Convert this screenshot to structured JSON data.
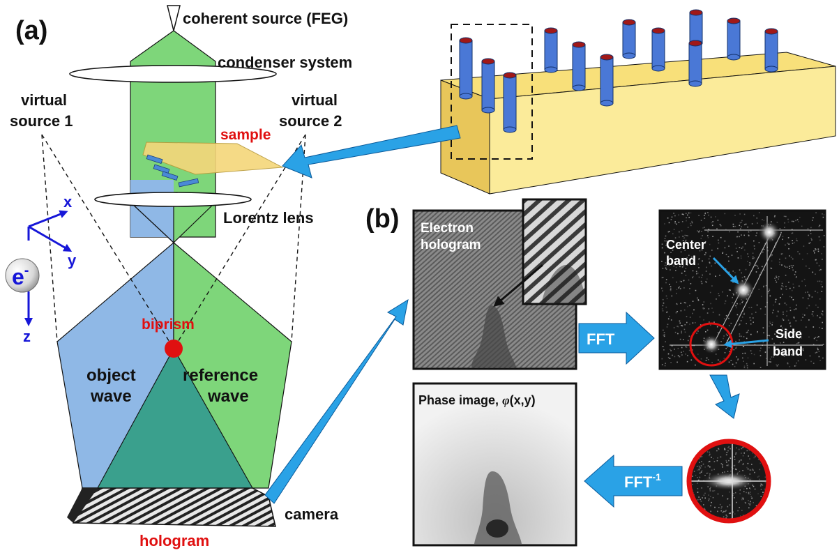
{
  "panel_a": {
    "label": "(a)",
    "source_label": "coherent source (FEG)",
    "condenser_label": "condenser system",
    "virtual_source_1": [
      "virtual",
      "source 1"
    ],
    "virtual_source_2": [
      "virtual",
      "source 2"
    ],
    "sample_label": "sample",
    "lorentz_label": "Lorentz lens",
    "biprism_label": "biprism",
    "object_wave": [
      "object",
      "wave"
    ],
    "reference_wave": [
      "reference",
      "wave"
    ],
    "camera_label": "camera",
    "hologram_label": "hologram",
    "axes": {
      "x": "x",
      "y": "y",
      "z": "z"
    },
    "electron": {
      "base": "e",
      "sup": "-"
    }
  },
  "panel_b": {
    "label": "(b)",
    "electron_hologram": [
      "Electron",
      "hologram"
    ],
    "center_band": [
      "Center",
      "band"
    ],
    "side_band": [
      "Side",
      "band"
    ],
    "fft_label": "FFT",
    "ifft_label": {
      "base": "FFT",
      "sup": "-1"
    },
    "phase_image": {
      "prefix": "Phase image, ",
      "symbol": "φ",
      "suffix": "(x,y)"
    }
  },
  "colors": {
    "beam_green": "#7ed67a",
    "beam_blue": "#8fb8e6",
    "overlap_teal": "#3aa08d",
    "label_red": "#e01010",
    "axis_blue": "#1616d8",
    "arrow_blue": "#2aa2e6",
    "substrate_yellow": "#f8e07a",
    "pillar_blue": "#4a78d6",
    "pillar_top": "#a01818"
  }
}
